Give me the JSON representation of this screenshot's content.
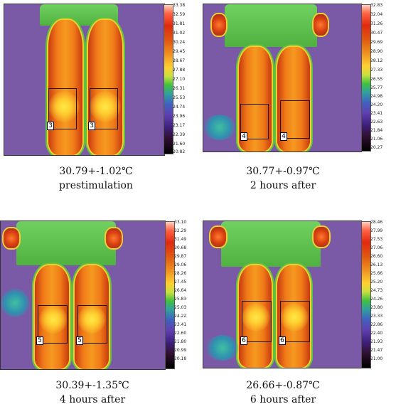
{
  "panels": [
    {
      "roi_number": "3",
      "scale_ticks": [
        "33.38",
        "32.59",
        "31.81",
        "31.02",
        "30.24",
        "29.45",
        "28.67",
        "27.88",
        "27.10",
        "26.31",
        "25.53",
        "24.74",
        "23.96",
        "23.17",
        "22.39",
        "21.60",
        "20.82"
      ],
      "caption_value": "30.79+-1.02℃",
      "caption_label": "prestimulation"
    },
    {
      "roi_number": "4",
      "scale_ticks": [
        "32.83",
        "32.04",
        "31.26",
        "30.47",
        "29.69",
        "28.90",
        "28.12",
        "27.33",
        "26.55",
        "25.77",
        "24.98",
        "24.20",
        "23.41",
        "22.63",
        "21.84",
        "21.06",
        "20.27"
      ],
      "caption_value": "30.77+-0.97℃",
      "caption_label": "2 hours after"
    },
    {
      "roi_number": "5",
      "scale_ticks": [
        "33.10",
        "32.29",
        "31.49",
        "30.68",
        "29.87",
        "29.06",
        "28.26",
        "27.45",
        "26.64",
        "25.83",
        "25.03",
        "24.22",
        "23.41",
        "22.60",
        "21.80",
        "20.99",
        "20.18"
      ],
      "caption_value": "30.39+-1.35℃",
      "caption_label": "4 hours after"
    },
    {
      "roi_number": "6",
      "scale_ticks": [
        "28.46",
        "27.99",
        "27.53",
        "27.06",
        "26.60",
        "26.13",
        "25.66",
        "25.20",
        "24.73",
        "24.26",
        "23.80",
        "23.33",
        "22.86",
        "22.40",
        "21.93",
        "21.47",
        "21.00"
      ],
      "caption_value": "26.66+-0.87℃",
      "caption_label": "6 hours after"
    }
  ]
}
